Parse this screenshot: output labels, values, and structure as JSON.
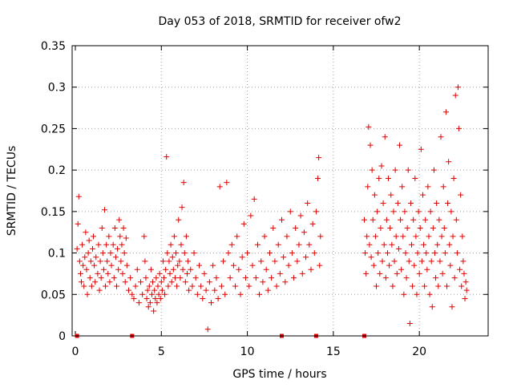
{
  "chart_data": {
    "type": "scatter",
    "title": "Day 053 of 2018, SRMTID for receiver ofw2",
    "xlabel": "GPS time / hours",
    "ylabel": "SRMTID / TECUs",
    "xlim": [
      0,
      24
    ],
    "ylim": [
      0,
      0.35
    ],
    "x_ticks": [
      0,
      5,
      10,
      15,
      20
    ],
    "x_tick_labels": [
      "0",
      "5",
      "10",
      "15",
      "20"
    ],
    "y_ticks": [
      0,
      0.05,
      0.1,
      0.15,
      0.2,
      0.25,
      0.3,
      0.35
    ],
    "y_tick_labels": [
      "0",
      "0.05",
      "0.1",
      "0.15",
      "0.2",
      "0.25",
      "0.3",
      "0.35"
    ],
    "grid": true,
    "marker": "+",
    "color": "#e00000",
    "series": [
      {
        "name": "SRMTID",
        "points": [
          [
            0.1,
            0.105
          ],
          [
            0.15,
            0.135
          ],
          [
            0.2,
            0.168
          ],
          [
            0.25,
            0.09
          ],
          [
            0.3,
            0.075
          ],
          [
            0.35,
            0.065
          ],
          [
            0.4,
            0.11
          ],
          [
            0.45,
            0.085
          ],
          [
            0.5,
            0.06
          ],
          [
            0.55,
            0.095
          ],
          [
            0.6,
            0.125
          ],
          [
            0.65,
            0.08
          ],
          [
            0.7,
            0.05
          ],
          [
            0.75,
            0.1
          ],
          [
            0.8,
            0.115
          ],
          [
            0.85,
            0.07
          ],
          [
            0.9,
            0.09
          ],
          [
            0.95,
            0.06
          ],
          [
            1.0,
            0.105
          ],
          [
            1.05,
            0.12
          ],
          [
            1.1,
            0.085
          ],
          [
            1.15,
            0.065
          ],
          [
            1.2,
            0.095
          ],
          [
            1.3,
            0.075
          ],
          [
            1.35,
            0.11
          ],
          [
            1.4,
            0.055
          ],
          [
            1.45,
            0.09
          ],
          [
            1.5,
            0.07
          ],
          [
            1.55,
            0.13
          ],
          [
            1.6,
            0.1
          ],
          [
            1.65,
            0.08
          ],
          [
            1.7,
            0.152
          ],
          [
            1.75,
            0.06
          ],
          [
            1.8,
            0.11
          ],
          [
            1.85,
            0.09
          ],
          [
            1.9,
            0.075
          ],
          [
            1.95,
            0.12
          ],
          [
            2.0,
            0.065
          ],
          [
            2.05,
            0.1
          ],
          [
            2.1,
            0.085
          ],
          [
            2.2,
            0.11
          ],
          [
            2.25,
            0.07
          ],
          [
            2.3,
            0.13
          ],
          [
            2.35,
            0.095
          ],
          [
            2.4,
            0.06
          ],
          [
            2.45,
            0.105
          ],
          [
            2.5,
            0.08
          ],
          [
            2.55,
            0.14
          ],
          [
            2.6,
            0.12
          ],
          [
            2.65,
            0.09
          ],
          [
            2.7,
            0.11
          ],
          [
            2.75,
            0.075
          ],
          [
            2.8,
            0.13
          ],
          [
            2.85,
            0.1
          ],
          [
            2.9,
            0.065
          ],
          [
            2.95,
            0.118
          ],
          [
            3.0,
            0.085
          ],
          [
            3.1,
            0.055
          ],
          [
            3.2,
            0.07
          ],
          [
            3.3,
            0.05
          ],
          [
            3.4,
            0.045
          ],
          [
            3.5,
            0.06
          ],
          [
            3.6,
            0.08
          ],
          [
            3.7,
            0.04
          ],
          [
            3.8,
            0.065
          ],
          [
            3.9,
            0.05
          ],
          [
            4.0,
            0.12
          ],
          [
            4.05,
            0.09
          ],
          [
            4.1,
            0.07
          ],
          [
            4.15,
            0.045
          ],
          [
            4.2,
            0.055
          ],
          [
            4.25,
            0.035
          ],
          [
            4.3,
            0.06
          ],
          [
            4.35,
            0.04
          ],
          [
            4.4,
            0.08
          ],
          [
            4.45,
            0.05
          ],
          [
            4.5,
            0.065
          ],
          [
            4.55,
            0.03
          ],
          [
            4.6,
            0.055
          ],
          [
            4.65,
            0.045
          ],
          [
            4.7,
            0.07
          ],
          [
            4.75,
            0.04
          ],
          [
            4.8,
            0.06
          ],
          [
            4.85,
            0.05
          ],
          [
            4.9,
            0.075
          ],
          [
            4.95,
            0.045
          ],
          [
            5.0,
            0.065
          ],
          [
            5.05,
            0.055
          ],
          [
            5.1,
            0.09
          ],
          [
            5.15,
            0.07
          ],
          [
            5.2,
            0.05
          ],
          [
            5.25,
            0.08
          ],
          [
            5.3,
            0.216
          ],
          [
            5.35,
            0.1
          ],
          [
            5.4,
            0.06
          ],
          [
            5.45,
            0.09
          ],
          [
            5.5,
            0.075
          ],
          [
            5.55,
            0.11
          ],
          [
            5.6,
            0.065
          ],
          [
            5.65,
            0.095
          ],
          [
            5.7,
            0.08
          ],
          [
            5.75,
            0.12
          ],
          [
            5.8,
            0.07
          ],
          [
            5.85,
            0.1
          ],
          [
            5.9,
            0.06
          ],
          [
            5.95,
            0.085
          ],
          [
            6.0,
            0.14
          ],
          [
            6.05,
            0.09
          ],
          [
            6.1,
            0.07
          ],
          [
            6.15,
            0.11
          ],
          [
            6.2,
            0.155
          ],
          [
            6.25,
            0.08
          ],
          [
            6.3,
            0.185
          ],
          [
            6.35,
            0.1
          ],
          [
            6.4,
            0.065
          ],
          [
            6.45,
            0.12
          ],
          [
            6.5,
            0.075
          ],
          [
            6.55,
            0.09
          ],
          [
            6.6,
            0.055
          ],
          [
            6.7,
            0.08
          ],
          [
            6.8,
            0.06
          ],
          [
            6.9,
            0.1
          ],
          [
            7.0,
            0.07
          ],
          [
            7.1,
            0.05
          ],
          [
            7.2,
            0.085
          ],
          [
            7.3,
            0.06
          ],
          [
            7.4,
            0.045
          ],
          [
            7.5,
            0.075
          ],
          [
            7.6,
            0.055
          ],
          [
            7.7,
            0.008
          ],
          [
            7.8,
            0.065
          ],
          [
            7.9,
            0.04
          ],
          [
            8.0,
            0.085
          ],
          [
            8.1,
            0.055
          ],
          [
            8.2,
            0.07
          ],
          [
            8.3,
            0.045
          ],
          [
            8.4,
            0.18
          ],
          [
            8.5,
            0.06
          ],
          [
            8.6,
            0.09
          ],
          [
            8.7,
            0.05
          ],
          [
            8.8,
            0.185
          ],
          [
            8.9,
            0.1
          ],
          [
            9.0,
            0.07
          ],
          [
            9.1,
            0.11
          ],
          [
            9.2,
            0.085
          ],
          [
            9.3,
            0.06
          ],
          [
            9.4,
            0.12
          ],
          [
            9.5,
            0.08
          ],
          [
            9.6,
            0.05
          ],
          [
            9.7,
            0.095
          ],
          [
            9.8,
            0.135
          ],
          [
            9.9,
            0.07
          ],
          [
            10.0,
            0.1
          ],
          [
            10.1,
            0.06
          ],
          [
            10.2,
            0.145
          ],
          [
            10.3,
            0.085
          ],
          [
            10.4,
            0.165
          ],
          [
            10.5,
            0.07
          ],
          [
            10.6,
            0.11
          ],
          [
            10.7,
            0.05
          ],
          [
            10.8,
            0.09
          ],
          [
            10.9,
            0.065
          ],
          [
            11.0,
            0.12
          ],
          [
            11.1,
            0.08
          ],
          [
            11.2,
            0.055
          ],
          [
            11.3,
            0.1
          ],
          [
            11.4,
            0.07
          ],
          [
            11.5,
            0.13
          ],
          [
            11.6,
            0.09
          ],
          [
            11.7,
            0.06
          ],
          [
            11.8,
            0.11
          ],
          [
            11.9,
            0.075
          ],
          [
            12.0,
            0.14
          ],
          [
            12.1,
            0.095
          ],
          [
            12.2,
            0.065
          ],
          [
            12.3,
            0.12
          ],
          [
            12.4,
            0.085
          ],
          [
            12.5,
            0.15
          ],
          [
            12.6,
            0.1
          ],
          [
            12.7,
            0.07
          ],
          [
            12.8,
            0.13
          ],
          [
            12.9,
            0.09
          ],
          [
            13.0,
            0.11
          ],
          [
            13.1,
            0.145
          ],
          [
            13.2,
            0.075
          ],
          [
            13.3,
            0.125
          ],
          [
            13.4,
            0.095
          ],
          [
            13.5,
            0.16
          ],
          [
            13.6,
            0.11
          ],
          [
            13.7,
            0.08
          ],
          [
            13.8,
            0.135
          ],
          [
            13.9,
            0.1
          ],
          [
            14.0,
            0.15
          ],
          [
            14.1,
            0.19
          ],
          [
            14.15,
            0.215
          ],
          [
            14.2,
            0.085
          ],
          [
            14.25,
            0.12
          ],
          [
            16.8,
            0.14
          ],
          [
            16.85,
            0.1
          ],
          [
            16.9,
            0.075
          ],
          [
            16.95,
            0.12
          ],
          [
            17.0,
            0.18
          ],
          [
            17.05,
            0.252
          ],
          [
            17.1,
            0.11
          ],
          [
            17.15,
            0.23
          ],
          [
            17.2,
            0.095
          ],
          [
            17.25,
            0.2
          ],
          [
            17.3,
            0.14
          ],
          [
            17.35,
            0.085
          ],
          [
            17.4,
            0.17
          ],
          [
            17.45,
            0.12
          ],
          [
            17.5,
            0.06
          ],
          [
            17.55,
            0.15
          ],
          [
            17.6,
            0.1
          ],
          [
            17.65,
            0.19
          ],
          [
            17.7,
            0.075
          ],
          [
            17.75,
            0.13
          ],
          [
            17.8,
            0.205
          ],
          [
            17.85,
            0.09
          ],
          [
            17.9,
            0.16
          ],
          [
            17.95,
            0.11
          ],
          [
            18.0,
            0.24
          ],
          [
            18.05,
            0.07
          ],
          [
            18.1,
            0.14
          ],
          [
            18.15,
            0.1
          ],
          [
            18.2,
            0.19
          ],
          [
            18.25,
            0.085
          ],
          [
            18.3,
            0.13
          ],
          [
            18.35,
            0.17
          ],
          [
            18.4,
            0.11
          ],
          [
            18.45,
            0.06
          ],
          [
            18.5,
            0.15
          ],
          [
            18.55,
            0.09
          ],
          [
            18.6,
            0.2
          ],
          [
            18.65,
            0.12
          ],
          [
            18.7,
            0.075
          ],
          [
            18.75,
            0.16
          ],
          [
            18.8,
            0.105
          ],
          [
            18.85,
            0.23
          ],
          [
            18.9,
            0.14
          ],
          [
            18.95,
            0.08
          ],
          [
            19.0,
            0.18
          ],
          [
            19.05,
            0.12
          ],
          [
            19.1,
            0.05
          ],
          [
            19.15,
            0.15
          ],
          [
            19.2,
            0.1
          ],
          [
            19.25,
            0.07
          ],
          [
            19.3,
            0.13
          ],
          [
            19.35,
            0.2
          ],
          [
            19.4,
            0.09
          ],
          [
            19.45,
            0.015
          ],
          [
            19.5,
            0.16
          ],
          [
            19.55,
            0.11
          ],
          [
            19.6,
            0.06
          ],
          [
            19.65,
            0.14
          ],
          [
            19.7,
            0.085
          ],
          [
            19.75,
            0.19
          ],
          [
            19.8,
            0.12
          ],
          [
            19.85,
            0.05
          ],
          [
            19.9,
            0.1
          ],
          [
            19.95,
            0.15
          ],
          [
            20.0,
            0.075
          ],
          [
            20.05,
            0.13
          ],
          [
            20.1,
            0.225
          ],
          [
            20.15,
            0.09
          ],
          [
            20.2,
            0.17
          ],
          [
            20.25,
            0.11
          ],
          [
            20.3,
            0.06
          ],
          [
            20.35,
            0.14
          ],
          [
            20.4,
            0.1
          ],
          [
            20.45,
            0.08
          ],
          [
            20.5,
            0.18
          ],
          [
            20.55,
            0.12
          ],
          [
            20.6,
            0.05
          ],
          [
            20.65,
            0.15
          ],
          [
            20.7,
            0.09
          ],
          [
            20.75,
            0.035
          ],
          [
            20.8,
            0.13
          ],
          [
            20.85,
            0.2
          ],
          [
            20.9,
            0.1
          ],
          [
            20.95,
            0.07
          ],
          [
            21.0,
            0.16
          ],
          [
            21.05,
            0.11
          ],
          [
            21.1,
            0.06
          ],
          [
            21.15,
            0.14
          ],
          [
            21.2,
            0.09
          ],
          [
            21.25,
            0.24
          ],
          [
            21.3,
            0.12
          ],
          [
            21.35,
            0.075
          ],
          [
            21.4,
            0.18
          ],
          [
            21.45,
            0.13
          ],
          [
            21.5,
            0.1
          ],
          [
            21.55,
            0.27
          ],
          [
            21.6,
            0.06
          ],
          [
            21.65,
            0.16
          ],
          [
            21.7,
            0.21
          ],
          [
            21.75,
            0.11
          ],
          [
            21.8,
            0.085
          ],
          [
            21.85,
            0.15
          ],
          [
            21.9,
            0.035
          ],
          [
            21.95,
            0.12
          ],
          [
            22.0,
            0.19
          ],
          [
            22.05,
            0.07
          ],
          [
            22.1,
            0.29
          ],
          [
            22.15,
            0.14
          ],
          [
            22.2,
            0.1
          ],
          [
            22.25,
            0.3
          ],
          [
            22.3,
            0.25
          ],
          [
            22.35,
            0.08
          ],
          [
            22.4,
            0.17
          ],
          [
            22.45,
            0.06
          ],
          [
            22.5,
            0.12
          ],
          [
            22.55,
            0.09
          ],
          [
            22.6,
            0.075
          ],
          [
            22.65,
            0.045
          ],
          [
            22.7,
            0.065
          ],
          [
            22.75,
            0.055
          ]
        ]
      }
    ],
    "data_gaps_hours": [
      0.1,
      3.3,
      12.0,
      14.0,
      16.8
    ]
  }
}
